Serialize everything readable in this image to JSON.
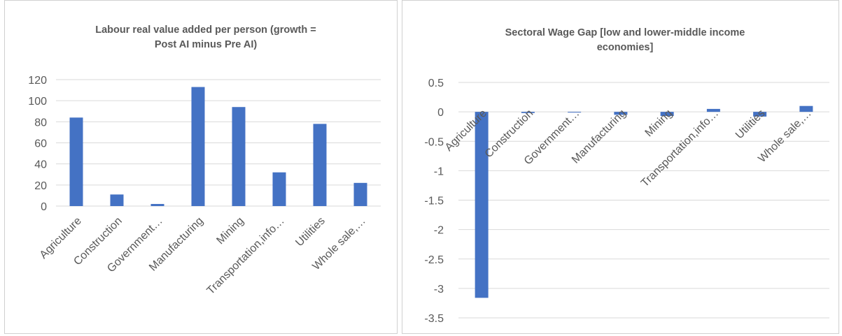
{
  "chart_data": [
    {
      "type": "bar",
      "title_lines": [
        "Labour real value added per person (growth =",
        "Post AI minus Pre AI)"
      ],
      "categories": [
        "Agriculture",
        "Construction",
        "Government…",
        "Manufacturing",
        "Mining",
        "Transportation,info…",
        "Utilities",
        "Whole sale,…"
      ],
      "values": [
        84,
        11,
        2,
        113,
        94,
        32,
        78,
        22
      ],
      "y_ticks": [
        "0",
        "20",
        "40",
        "60",
        "80",
        "100",
        "120"
      ],
      "ylim": [
        0,
        120
      ],
      "grid": true,
      "bar_color": "#4472c4"
    },
    {
      "type": "bar",
      "title_lines": [
        "Sectoral Wage Gap [low and lower-middle income",
        "economies]"
      ],
      "categories": [
        "Agriculture",
        "Construction",
        "Government…",
        "Manufacturing",
        "Mining",
        "Transportation,info…",
        "Utilities",
        "Whole sale,…"
      ],
      "values": [
        -3.16,
        -0.02,
        -0.01,
        -0.05,
        -0.07,
        0.05,
        -0.08,
        0.1
      ],
      "y_ticks": [
        "0.5",
        "0",
        "-0.5",
        "-1",
        "-1.5",
        "-2",
        "-2.5",
        "-3",
        "-3.5"
      ],
      "ylim": [
        -3.5,
        0.5
      ],
      "grid": true,
      "bar_color": "#4472c4"
    }
  ]
}
